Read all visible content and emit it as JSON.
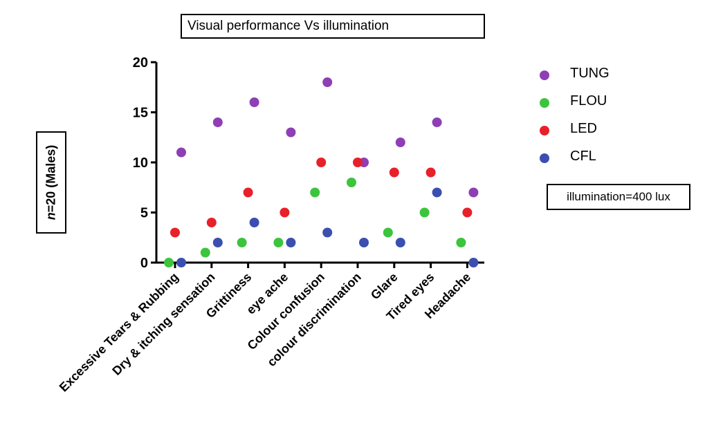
{
  "chart_data": {
    "type": "scatter",
    "title": "Visual performance Vs illumination",
    "ylabel": "n=20 (Males)",
    "annotation": "illumination=400 lux",
    "ylim": [
      0,
      20
    ],
    "yticks": [
      0,
      5,
      10,
      15,
      20
    ],
    "categories": [
      "Excessive Tears & Rubbing",
      "Dry & itching sensation",
      "Grittiness",
      "eye ache",
      "Colour confusion",
      "colour discrimination",
      "Glare",
      "Tired eyes",
      "Headache"
    ],
    "grid": false,
    "legend_position": "right",
    "series": [
      {
        "name": "TUNG",
        "color": "#8e3fb5",
        "values": [
          11,
          14,
          16,
          13,
          18,
          10,
          12,
          14,
          7
        ]
      },
      {
        "name": "FLOU",
        "color": "#3cc43c",
        "values": [
          0,
          1,
          2,
          2,
          7,
          8,
          3,
          5,
          2
        ]
      },
      {
        "name": "LED",
        "color": "#e8202a",
        "values": [
          3,
          4,
          7,
          5,
          10,
          10,
          9,
          9,
          5
        ]
      },
      {
        "name": "CFL",
        "color": "#3a4fb0",
        "values": [
          0,
          2,
          4,
          2,
          3,
          2,
          2,
          7,
          0
        ]
      }
    ]
  }
}
